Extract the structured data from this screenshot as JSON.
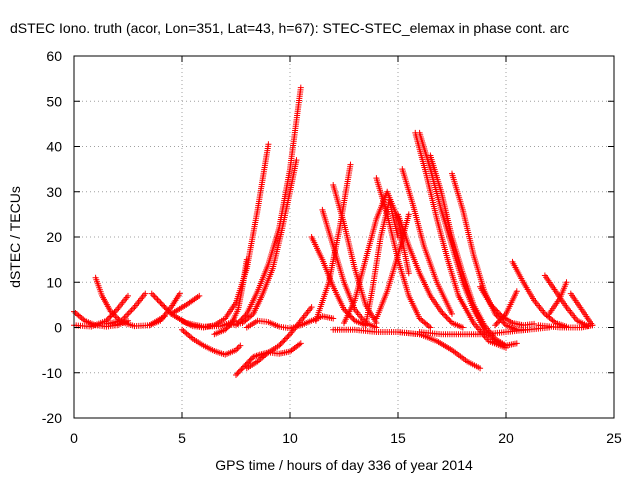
{
  "chart_data": {
    "type": "scatter",
    "title": "dSTEC Iono. truth (acor, Lon=351, Lat=43, h=67): STEC-STEC_elemax in phase cont. arc",
    "xlabel": "GPS time / hours of day 336 of year 2014",
    "ylabel": "dSTEC  / TECUs",
    "xlim": [
      0,
      25
    ],
    "ylim": [
      -20,
      60
    ],
    "xticks": [
      0,
      5,
      10,
      15,
      20,
      25
    ],
    "yticks": [
      -20,
      -10,
      0,
      10,
      20,
      30,
      40,
      50,
      60
    ],
    "grid": true,
    "marker": "plus",
    "color": "#ff0000",
    "series": [
      {
        "x": [
          0.0,
          0.5,
          1.0,
          1.5,
          2.0,
          2.5
        ],
        "values": [
          3.5,
          1.5,
          0.5,
          0.2,
          0.5,
          1.5
        ]
      },
      {
        "x": [
          0.0,
          0.8,
          1.5,
          2.0,
          2.5
        ],
        "values": [
          0.5,
          0.2,
          1.5,
          4.0,
          7.0
        ]
      },
      {
        "x": [
          1.0,
          1.3,
          1.7,
          2.2,
          2.8,
          3.5,
          4.2
        ],
        "values": [
          11.0,
          7.0,
          3.5,
          1.2,
          0.3,
          0.5,
          2.5
        ]
      },
      {
        "x": [
          1.5,
          2.2,
          2.8,
          3.3
        ],
        "values": [
          0.8,
          1.5,
          4.5,
          7.5
        ]
      },
      {
        "x": [
          3.6,
          4.0,
          4.5,
          5.2,
          6.0,
          6.8,
          7.5
        ],
        "values": [
          7.5,
          5.5,
          3.0,
          1.0,
          0.2,
          0.3,
          1.5
        ]
      },
      {
        "x": [
          3.5,
          4.0,
          4.5,
          4.9
        ],
        "values": [
          0.5,
          1.5,
          4.5,
          7.5
        ]
      },
      {
        "x": [
          5.0,
          5.5,
          6.0,
          6.5,
          7.0,
          7.5,
          8.0,
          8.5,
          9.0
        ],
        "values": [
          1.5,
          0.3,
          0.0,
          0.5,
          2.0,
          5.5,
          13.0,
          26.0,
          40.5
        ]
      },
      {
        "x": [
          4.5,
          5.2,
          5.8
        ],
        "values": [
          3.0,
          5.0,
          7.0
        ]
      },
      {
        "x": [
          5.0,
          5.5,
          6.0,
          6.5,
          7.0,
          7.5,
          7.7
        ],
        "values": [
          -0.5,
          -2.5,
          -4.0,
          -5.2,
          -6.0,
          -5.0,
          -4.0
        ]
      },
      {
        "x": [
          6.5,
          7.0,
          7.3,
          7.6,
          7.8,
          8.0
        ],
        "values": [
          -1.5,
          -0.5,
          1.0,
          4.0,
          9.0,
          15.0
        ]
      },
      {
        "x": [
          7.5,
          8.0,
          8.3,
          8.6,
          9.0,
          9.5,
          10.0,
          10.5
        ],
        "values": [
          -10.5,
          -8.0,
          -6.5,
          -6.0,
          -5.5,
          -5.8,
          -5.3,
          -3.5
        ]
      },
      {
        "x": [
          8.0,
          8.5,
          9.0,
          9.5,
          10.0,
          10.5,
          11.0
        ],
        "values": [
          -9.0,
          -7.5,
          -5.5,
          -4.0,
          -1.5,
          1.5,
          4.5
        ]
      },
      {
        "x": [
          7.5,
          8.0,
          8.5,
          9.0,
          9.5,
          10.0,
          10.5
        ],
        "values": [
          0.5,
          3.0,
          8.0,
          14.0,
          22.0,
          35.0,
          53.0
        ]
      },
      {
        "x": [
          7.2,
          7.8,
          8.3,
          8.7,
          9.2,
          9.6,
          10.0,
          10.3
        ],
        "values": [
          0.5,
          1.0,
          3.0,
          7.0,
          13.0,
          21.0,
          30.0,
          37.0
        ]
      },
      {
        "x": [
          8.0,
          8.5,
          9.0,
          9.5,
          10.0,
          10.5,
          11.0,
          11.5,
          12.0
        ],
        "values": [
          0.0,
          1.5,
          1.2,
          0.2,
          -0.2,
          0.5,
          1.5,
          2.5,
          2.0
        ]
      },
      {
        "x": [
          11.0,
          11.5,
          12.0,
          12.5,
          13.0,
          13.5
        ],
        "values": [
          20.0,
          15.0,
          9.0,
          4.0,
          1.5,
          0.5
        ]
      },
      {
        "x": [
          11.5,
          12.0,
          12.5,
          13.0,
          13.5,
          14.0
        ],
        "values": [
          26.0,
          18.0,
          10.0,
          4.0,
          1.0,
          0.0
        ]
      },
      {
        "x": [
          11.2,
          11.8,
          12.3,
          12.8
        ],
        "values": [
          1.5,
          10.0,
          22.0,
          36.0
        ]
      },
      {
        "x": [
          12.0,
          12.5,
          13.0,
          13.5,
          14.0
        ],
        "values": [
          31.5,
          23.0,
          13.0,
          5.0,
          1.0
        ]
      },
      {
        "x": [
          12.5,
          13.0,
          13.5,
          14.0,
          14.5,
          15.0,
          15.5
        ],
        "values": [
          1.0,
          6.0,
          15.0,
          24.0,
          30.0,
          24.0,
          12.0
        ]
      },
      {
        "x": [
          13.5,
          13.8,
          14.2,
          14.6,
          15.0
        ],
        "values": [
          0.5,
          8.0,
          20.0,
          28.0,
          20.0
        ]
      },
      {
        "x": [
          12.0,
          13.0,
          14.0,
          15.0,
          16.0
        ],
        "values": [
          -0.5,
          -0.5,
          -1.0,
          -1.0,
          -1.5
        ]
      },
      {
        "x": [
          14.0,
          14.5,
          15.0,
          15.5,
          16.0,
          16.5
        ],
        "values": [
          33.0,
          25.0,
          15.0,
          7.0,
          2.0,
          0.0
        ]
      },
      {
        "x": [
          14.0,
          14.5,
          15.0,
          15.5
        ],
        "values": [
          2.0,
          8.0,
          16.0,
          25.0
        ]
      },
      {
        "x": [
          15.0,
          15.5,
          16.0,
          16.5,
          17.0,
          17.5,
          18.0
        ],
        "values": [
          25.0,
          18.0,
          12.0,
          7.0,
          3.5,
          1.0,
          0.0
        ]
      },
      {
        "x": [
          15.2,
          15.7,
          16.2,
          16.8,
          17.5
        ],
        "values": [
          35.0,
          27.0,
          18.0,
          10.0,
          3.0
        ]
      },
      {
        "x": [
          15.8,
          16.3,
          16.8,
          17.3,
          17.8,
          18.5,
          19.2,
          20.0
        ],
        "values": [
          43.0,
          34.0,
          24.0,
          15.0,
          7.0,
          1.0,
          -3.0,
          -4.5
        ]
      },
      {
        "x": [
          16.0,
          16.5,
          17.0,
          17.5,
          18.0,
          18.5,
          19.0,
          19.5,
          20.0
        ],
        "values": [
          43.0,
          35.0,
          26.0,
          18.0,
          10.0,
          4.0,
          -0.5,
          -3.0,
          -4.0
        ]
      },
      {
        "x": [
          16.5,
          17.0,
          17.5,
          18.0,
          18.5,
          19.0,
          19.5,
          20.0,
          20.5
        ],
        "values": [
          38.0,
          30.0,
          20.0,
          12.0,
          5.0,
          0.5,
          -2.5,
          -4.0,
          -3.5
        ]
      },
      {
        "x": [
          17.5,
          18.0,
          18.5,
          19.0,
          19.5,
          20.0,
          20.5,
          21.0
        ],
        "values": [
          34.0,
          26.0,
          16.0,
          8.0,
          3.0,
          0.5,
          -0.5,
          -0.5
        ]
      },
      {
        "x": [
          15.0,
          16.0,
          16.8,
          17.5,
          18.2,
          18.8
        ],
        "values": [
          -1.0,
          -1.5,
          -3.0,
          -5.0,
          -7.5,
          -9.0
        ]
      },
      {
        "x": [
          16.0,
          17.0,
          18.0,
          19.0,
          20.0,
          21.0,
          22.0
        ],
        "values": [
          -1.0,
          -1.5,
          -1.5,
          -1.5,
          -1.0,
          -0.5,
          0.0
        ]
      },
      {
        "x": [
          18.8,
          19.3,
          19.8,
          20.3,
          20.8,
          21.3
        ],
        "values": [
          9.0,
          5.0,
          2.5,
          1.0,
          0.5,
          0.8
        ]
      },
      {
        "x": [
          20.3,
          20.8,
          21.3,
          21.8,
          22.3,
          22.8
        ],
        "values": [
          14.5,
          10.0,
          6.0,
          3.0,
          1.0,
          0.2
        ]
      },
      {
        "x": [
          19.5,
          20.0,
          20.5
        ],
        "values": [
          0.5,
          3.0,
          8.0
        ]
      },
      {
        "x": [
          21.8,
          22.3,
          22.8,
          23.3,
          23.8
        ],
        "values": [
          11.5,
          8.0,
          4.5,
          1.5,
          0.3
        ]
      },
      {
        "x": [
          22.0,
          22.5,
          22.8
        ],
        "values": [
          3.0,
          6.5,
          10.0
        ]
      },
      {
        "x": [
          23.0,
          23.5,
          24.0
        ],
        "values": [
          7.5,
          4.0,
          0.5
        ]
      },
      {
        "x": [
          21.5,
          22.5,
          23.5,
          24.0
        ],
        "values": [
          0.5,
          0.0,
          0.0,
          0.5
        ]
      }
    ]
  }
}
